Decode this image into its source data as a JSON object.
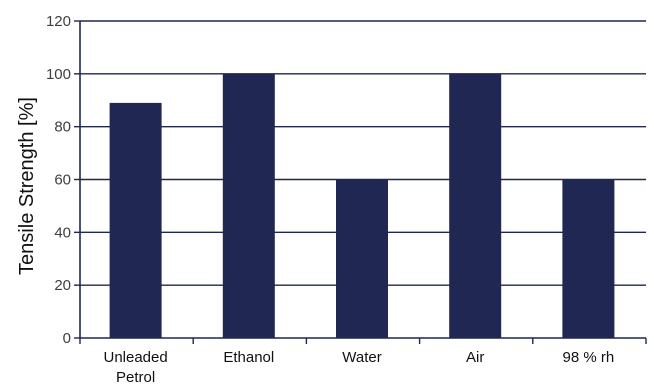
{
  "chart_data": {
    "type": "bar",
    "title": "",
    "xlabel": "",
    "ylabel": "Tensile Strength [%]",
    "categories": [
      [
        "Unleaded",
        "Petrol"
      ],
      [
        "Ethanol"
      ],
      [
        "Water"
      ],
      [
        "Air"
      ],
      [
        "98 % rh"
      ]
    ],
    "values": [
      89,
      100,
      60,
      100,
      60
    ],
    "ylim": [
      0,
      120
    ],
    "yticks": [
      0,
      20,
      40,
      60,
      80,
      100,
      120
    ],
    "grid": true,
    "legend": "none",
    "colors": {
      "bar": "#1f2752",
      "grid": "#1f2752",
      "axis": "#1f2752",
      "tick_text": "#3f3f3f",
      "label_text": "#111111"
    }
  }
}
